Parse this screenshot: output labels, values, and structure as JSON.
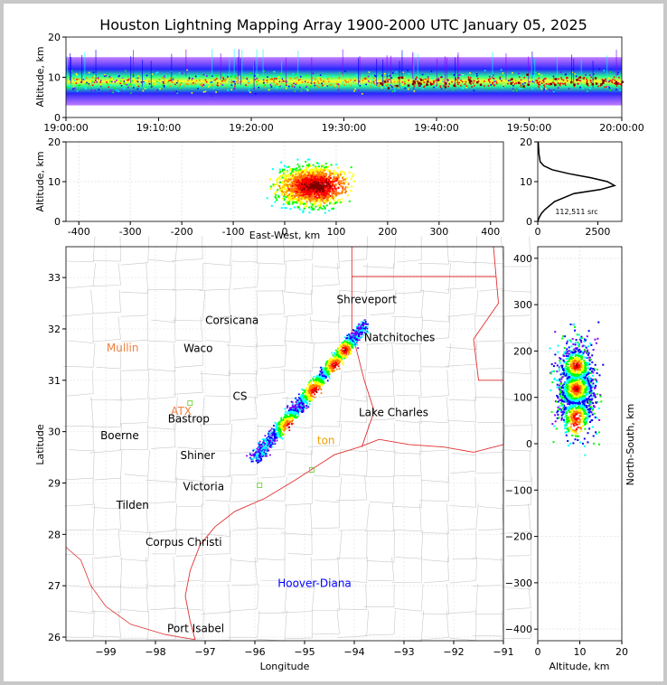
{
  "chart_data": [
    {
      "type": "heatmap",
      "panel": "time-altitude",
      "title": "Houston Lightning Mapping Array 1900-2000 UTC January 05, 2025",
      "ylabel": "Altitude, km",
      "xlabel": "",
      "x_ticks": [
        "19:00:00",
        "19:10:00",
        "19:20:00",
        "19:30:00",
        "19:40:00",
        "19:50:00",
        "20:00:00"
      ],
      "y_ticks": [
        0,
        10,
        20
      ],
      "ylim": [
        0,
        20
      ],
      "core_altitude_km": 9,
      "note_colors": [
        "#8000ff",
        "#0000ff",
        "#00ffff",
        "#00ff00",
        "#ffff00",
        "#ff8000",
        "#ff0000"
      ]
    },
    {
      "type": "heatmap",
      "panel": "east-west-altitude",
      "xlabel": "East-West, km",
      "ylabel": "Altitude, km",
      "x_ticks": [
        -400,
        -300,
        -200,
        -100,
        0,
        100,
        200,
        300,
        400
      ],
      "y_ticks": [
        0,
        10,
        20
      ],
      "xlim": [
        -425,
        425
      ],
      "ylim": [
        0,
        20
      ]
    },
    {
      "type": "line",
      "panel": "altitude-histogram",
      "x_ticks": [
        0,
        2500
      ],
      "y_ticks": [
        0,
        10,
        20
      ],
      "annotation": "112,511 src",
      "x": [
        0,
        60,
        150,
        300,
        700,
        1500,
        2600,
        3200,
        2900,
        2200,
        1300,
        600,
        250,
        100,
        50,
        20
      ],
      "y": [
        0,
        1,
        2,
        3,
        5,
        7,
        8,
        9,
        10,
        11,
        12,
        13,
        14,
        15,
        17,
        20
      ]
    },
    {
      "type": "heatmap",
      "panel": "plan-view-map",
      "xlabel": "Longitude",
      "ylabel": "Latitude",
      "x_ticks": [
        -99,
        -98,
        -97,
        -96,
        -95,
        -94,
        -93,
        -92,
        -91
      ],
      "y_ticks": [
        26,
        27,
        28,
        29,
        30,
        31,
        32,
        33
      ],
      "xlim": [
        -99.8,
        -91
      ],
      "ylim": [
        25.93,
        33.6
      ],
      "places": [
        {
          "name": "Shreveport",
          "lon": -93.75,
          "lat": 32.5,
          "color": "#000000"
        },
        {
          "name": "Corsicana",
          "lon": -96.46,
          "lat": 32.1,
          "color": "#000000"
        },
        {
          "name": "Mullin",
          "lon": -98.66,
          "lat": 31.56,
          "color": "#f08040"
        },
        {
          "name": "Waco",
          "lon": -97.14,
          "lat": 31.55,
          "color": "#000000"
        },
        {
          "name": "Natchitoches",
          "lon": -93.09,
          "lat": 31.76,
          "color": "#000000"
        },
        {
          "name": "CS",
          "lon": -96.3,
          "lat": 30.62,
          "color": "#000000"
        },
        {
          "name": "ATX",
          "lon": -97.48,
          "lat": 30.33,
          "color": "#f08040"
        },
        {
          "name": "Bastrop",
          "lon": -97.33,
          "lat": 30.18,
          "color": "#000000"
        },
        {
          "name": "Lake Charles",
          "lon": -93.21,
          "lat": 30.3,
          "color": "#000000"
        },
        {
          "name": "Boerne",
          "lon": -98.72,
          "lat": 29.85,
          "color": "#000000"
        },
        {
          "name": "ton",
          "lon": -94.57,
          "lat": 29.76,
          "color": "#f0a000"
        },
        {
          "name": "Shiner",
          "lon": -97.15,
          "lat": 29.47,
          "color": "#000000"
        },
        {
          "name": "Victoria",
          "lon": -97.03,
          "lat": 28.86,
          "color": "#000000"
        },
        {
          "name": "Tilden",
          "lon": -98.46,
          "lat": 28.5,
          "color": "#000000"
        },
        {
          "name": "Corpus Christi",
          "lon": -97.43,
          "lat": 27.78,
          "color": "#000000"
        },
        {
          "name": "Hoover-Diana",
          "lon": -94.8,
          "lat": 26.98,
          "color": "#0000ff"
        },
        {
          "name": "Port Isabel",
          "lon": -97.19,
          "lat": 26.1,
          "color": "#000000"
        }
      ]
    },
    {
      "type": "heatmap",
      "panel": "altitude-north-south",
      "xlabel": "Altitude, km",
      "ylabel": "North-South, km",
      "x_ticks": [
        0,
        10,
        20
      ],
      "y_ticks": [
        -400,
        -300,
        -200,
        -100,
        0,
        100,
        200,
        300,
        400
      ],
      "xlim": [
        0,
        20
      ],
      "ylim": [
        -425,
        425
      ]
    }
  ]
}
